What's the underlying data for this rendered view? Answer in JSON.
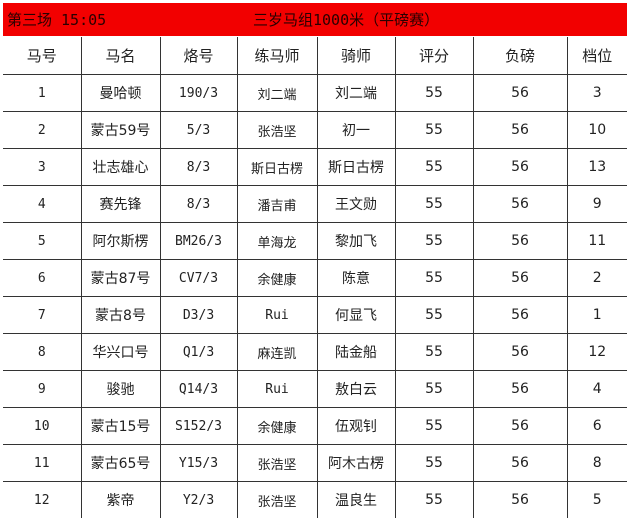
{
  "header": {
    "race": "第三场 15:05",
    "title": "三岁马组1000米（平磅赛）"
  },
  "columns": [
    "马号",
    "马名",
    "烙号",
    "练马师",
    "骑师",
    "评分",
    "负磅",
    "档位"
  ],
  "rows": [
    [
      "1",
      "曼哈顿",
      "190/3",
      "刘二端",
      "刘二端",
      "55",
      "56",
      "3"
    ],
    [
      "2",
      "蒙古59号",
      "5/3",
      "张浩坚",
      "初一",
      "55",
      "56",
      "10"
    ],
    [
      "3",
      "壮志雄心",
      "8/3",
      "斯日古楞",
      "斯日古楞",
      "55",
      "56",
      "13"
    ],
    [
      "4",
      "赛先锋",
      "8/3",
      "潘吉甫",
      "王文勋",
      "55",
      "56",
      "9"
    ],
    [
      "5",
      "阿尔斯楞",
      "BM26/3",
      "单海龙",
      "黎加飞",
      "55",
      "56",
      "11"
    ],
    [
      "6",
      "蒙古87号",
      "CV7/3",
      "余健康",
      "陈意",
      "55",
      "56",
      "2"
    ],
    [
      "7",
      "蒙古8号",
      "D3/3",
      "Rui",
      "何显飞",
      "55",
      "56",
      "1"
    ],
    [
      "8",
      "华兴口号",
      "Q1/3",
      "麻连凯",
      "陆金船",
      "55",
      "56",
      "12"
    ],
    [
      "9",
      "骏驰",
      "Q14/3",
      "Rui",
      "敖白云",
      "55",
      "56",
      "4"
    ],
    [
      "10",
      "蒙古15号",
      "S152/3",
      "余健康",
      "伍观钊",
      "55",
      "56",
      "6"
    ],
    [
      "11",
      "蒙古65号",
      "Y15/3",
      "张浩坚",
      "阿木古楞",
      "55",
      "56",
      "8"
    ],
    [
      "12",
      "紫帝",
      "Y2/3",
      "张浩坚",
      "温良生",
      "55",
      "56",
      "5"
    ]
  ]
}
